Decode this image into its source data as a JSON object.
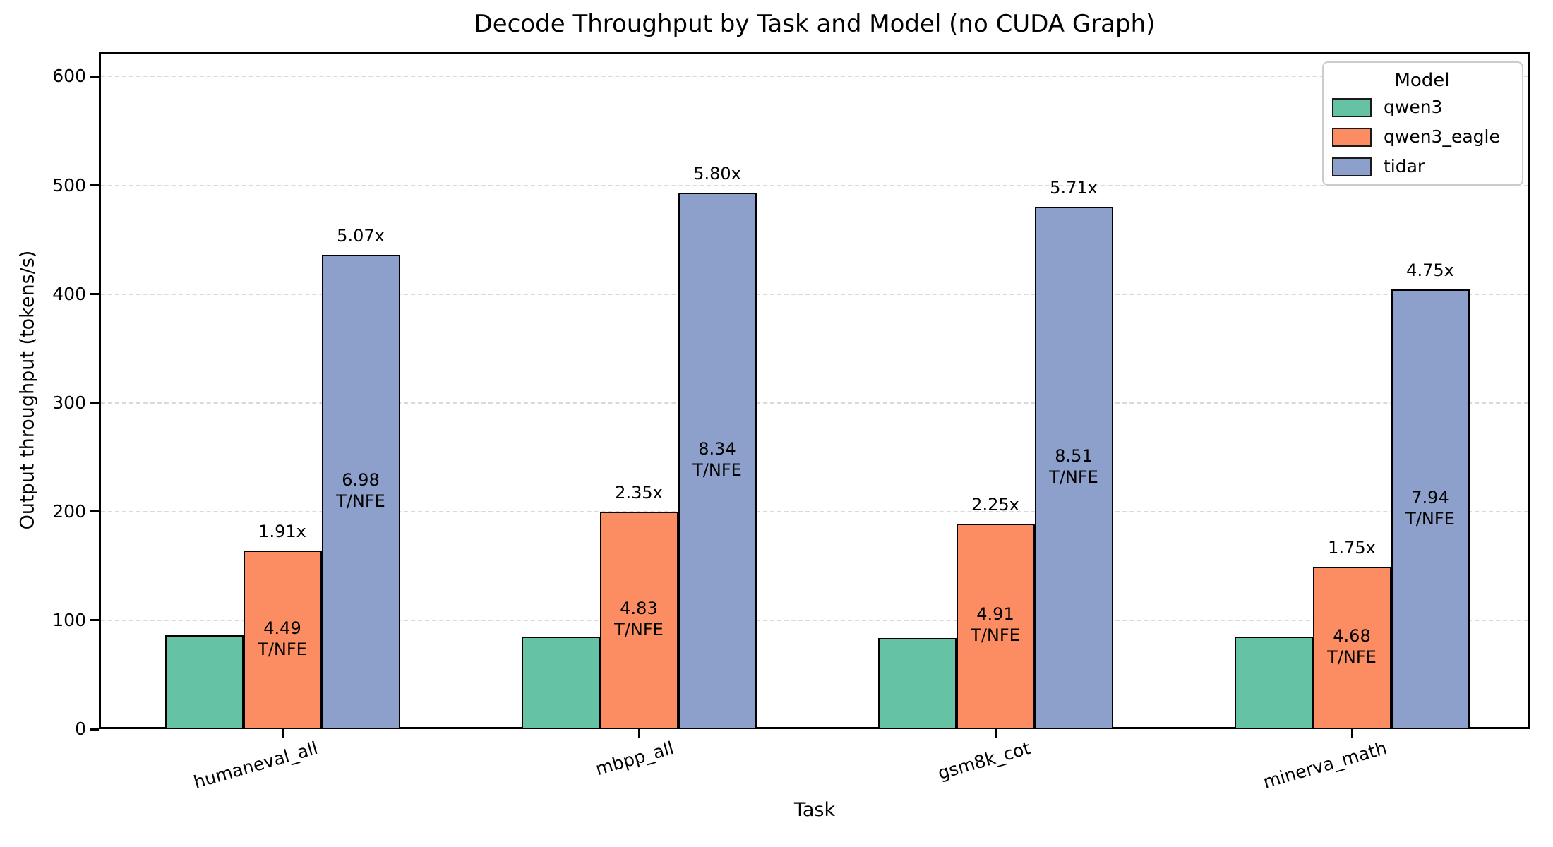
{
  "chart_data": {
    "type": "bar",
    "title": "Decode Throughput by Task and Model (no CUDA Graph)",
    "xlabel": "Task",
    "ylabel": "Output throughput (tokens/s)",
    "categories": [
      "humaneval_all",
      "mbpp_all",
      "gsm8k_cot",
      "minerva_math"
    ],
    "series": [
      {
        "name": "qwen3",
        "color": "#66c2a5",
        "values": [
          86,
          85,
          84,
          85
        ],
        "speedup_labels": [
          null,
          null,
          null,
          null
        ],
        "tnfe_labels": [
          null,
          null,
          null,
          null
        ]
      },
      {
        "name": "qwen3_eagle",
        "color": "#fc8d62",
        "values": [
          164,
          200,
          189,
          149
        ],
        "speedup_labels": [
          "1.91x",
          "2.35x",
          "2.25x",
          "1.75x"
        ],
        "tnfe_labels": [
          "4.49",
          "4.83",
          "4.91",
          "4.68"
        ]
      },
      {
        "name": "tidar",
        "color": "#8da0cb",
        "values": [
          436,
          493,
          480,
          404
        ],
        "speedup_labels": [
          "5.07x",
          "5.80x",
          "5.71x",
          "4.75x"
        ],
        "tnfe_labels": [
          "6.98",
          "8.34",
          "8.51",
          "7.94"
        ]
      }
    ],
    "tnfe_suffix": "T/NFE",
    "yticks": [
      0,
      100,
      200,
      300,
      400,
      500,
      600
    ],
    "ylim": [
      0,
      623
    ],
    "grid": true,
    "grid_axis": "y",
    "legend_title": "Model",
    "legend_position": "upper right"
  }
}
